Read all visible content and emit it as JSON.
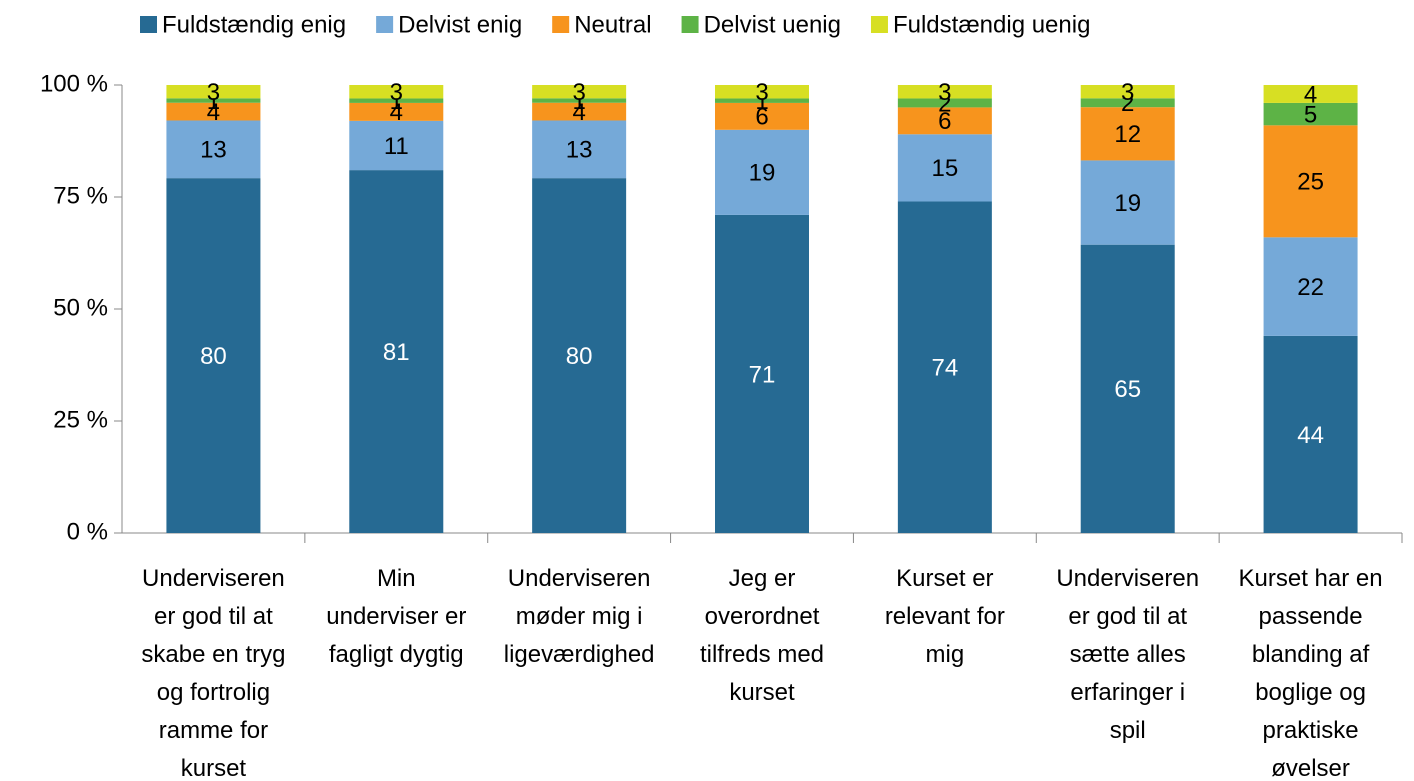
{
  "chart_data": {
    "type": "bar",
    "stacked": true,
    "categories": [
      "Underviseren\ner god til at\nskabe en tryg\nog fortrolig\nramme for\nkurset",
      "Min\nunderviser er\nfagligt dygtig",
      "Underviseren\nmøder mig i\nligeværdighed",
      "Jeg er\noverordnet\ntilfreds med\nkurset",
      "Kurset er\nrelevant for\nmig",
      "Underviseren\ner god til at\nsætte alles\nerfaringer i\nspil",
      "Kurset har en\npassende\nblanding af\nboglige og\npraktiske\nøvelser"
    ],
    "series": [
      {
        "name": "Fuldstændig enig",
        "color": "#266a93",
        "values": [
          80,
          81,
          80,
          71,
          74,
          65,
          44
        ]
      },
      {
        "name": "Delvist enig",
        "color": "#75a9d8",
        "values": [
          13,
          11,
          13,
          19,
          15,
          19,
          22
        ]
      },
      {
        "name": "Neutral",
        "color": "#f7941d",
        "values": [
          4,
          4,
          4,
          6,
          6,
          12,
          25
        ]
      },
      {
        "name": "Delvist uenig",
        "color": "#5db346",
        "values": [
          1,
          1,
          1,
          1,
          2,
          2,
          5
        ]
      },
      {
        "name": "Fuldstændig uenig",
        "color": "#d7df23",
        "values": [
          3,
          3,
          3,
          3,
          3,
          3,
          4
        ]
      }
    ],
    "ylim": [
      0,
      100
    ],
    "yticks": [
      {
        "value": 0,
        "label": "0 %"
      },
      {
        "value": 25,
        "label": "25 %"
      },
      {
        "value": 50,
        "label": "50 %"
      },
      {
        "value": 75,
        "label": "75 %"
      },
      {
        "value": 100,
        "label": "100 %"
      }
    ],
    "legend": "top"
  }
}
